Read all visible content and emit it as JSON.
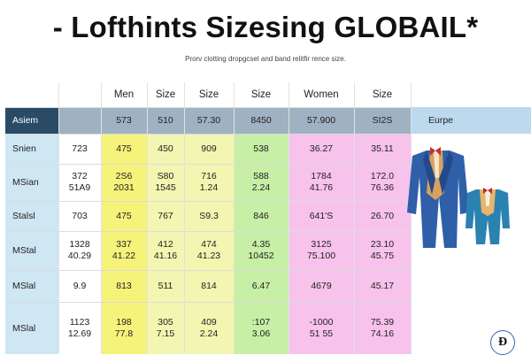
{
  "title": "- Lofthints Sizesing GLOBAIL*",
  "subtitle": "Prorv clotting dropgcsel and band relitfir rence size.",
  "colors": {
    "header_band": "#9fb2c2",
    "label_col": "#cfe6f3",
    "men_col": "#f6f37a",
    "size_light": "#f2f6b0",
    "size_green": "#c7efa5",
    "women_col": "#f7c2ec",
    "europe_hdr": "#bcd9ee"
  },
  "header_top": [
    "",
    "",
    "Men",
    "Size",
    "Size",
    "Size",
    "Women",
    "Size",
    ""
  ],
  "header_band": [
    "Asiem",
    "",
    "573",
    "510",
    "57.30",
    "8450",
    "57.900",
    "SI2S",
    "Eurpe"
  ],
  "rows": [
    {
      "label": "Snien",
      "cells": [
        "723",
        "475",
        "450",
        "909",
        "538",
        "36.27",
        "35.11"
      ]
    },
    {
      "label": "MSian",
      "cells": [
        "372\n51A9",
        "2S6\n2031",
        "S80\n1545",
        "716\n1.24",
        "588\n2.24",
        "1784\n41.76",
        "172.0\n76.36"
      ]
    },
    {
      "label": "Stalsl",
      "cells": [
        "703",
        "475",
        "767",
        "S9.3",
        "846",
        "641'S",
        "26.70"
      ]
    },
    {
      "label": "MStal",
      "cells": [
        "1328\n40.29",
        "337\n41.22",
        "412\n41.16",
        "474\n41.23",
        "4.35\n10452",
        "3125\n75.100",
        "23.10\n45.75"
      ]
    },
    {
      "label": "MSlal",
      "cells": [
        "9.9",
        "813",
        "511",
        "814",
        "6.47",
        "4679",
        "45.17"
      ]
    },
    {
      "label": "MSlal",
      "cells": [
        "1123\n12.69",
        "198\n77.8",
        "305\n7.15",
        "409\n2.24",
        ":107\n3.06",
        "-1000\n51 55",
        "75.39\n74.16"
      ]
    }
  ],
  "badge_glyph": "Ð"
}
